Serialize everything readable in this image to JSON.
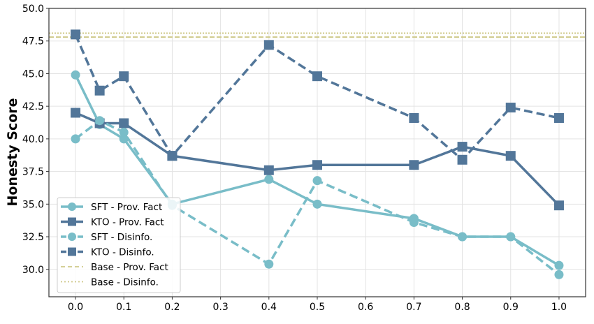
{
  "chart_data": {
    "type": "line",
    "title": "",
    "xlabel": "",
    "ylabel": "Honesty Score",
    "xlim": [
      -0.055,
      1.055
    ],
    "ylim": [
      27.9,
      50.0
    ],
    "xticks": [
      "0.0",
      "0.1",
      "0.2",
      "0.3",
      "0.4",
      "0.5",
      "0.6",
      "0.7",
      "0.8",
      "0.9",
      "1.0"
    ],
    "yticks": [
      "30.0",
      "32.5",
      "35.0",
      "37.5",
      "40.0",
      "42.5",
      "45.0",
      "47.5",
      "50.0"
    ],
    "grid": true,
    "legend_position": "bottom-left",
    "x": [
      0.0,
      0.05,
      0.1,
      0.2,
      0.4,
      0.5,
      0.7,
      0.8,
      0.9,
      1.0
    ],
    "series": [
      {
        "name": "SFT - Prov. Fact",
        "color": "#79bdc8",
        "dash": "solid",
        "marker": "circle",
        "values": [
          44.9,
          41.1,
          40.0,
          35.0,
          36.9,
          35.0,
          33.9,
          32.5,
          32.5,
          30.3
        ]
      },
      {
        "name": "KTO - Prov. Fact",
        "color": "#527699",
        "dash": "solid",
        "marker": "square",
        "values": [
          42.0,
          41.2,
          41.2,
          38.7,
          37.6,
          38.0,
          38.0,
          39.4,
          38.7,
          34.9
        ]
      },
      {
        "name": "SFT - Disinfo.",
        "color": "#79bdc8",
        "dash": "dashed",
        "marker": "circle",
        "values": [
          40.0,
          41.4,
          40.5,
          34.9,
          30.4,
          36.8,
          33.6,
          32.5,
          32.5,
          29.6
        ]
      },
      {
        "name": "KTO - Disinfo.",
        "color": "#527699",
        "dash": "dashed",
        "marker": "square",
        "values": [
          48.0,
          43.7,
          44.8,
          38.7,
          47.2,
          44.8,
          41.6,
          38.4,
          42.4,
          41.6
        ]
      }
    ],
    "baselines": [
      {
        "name": "Base - Prov. Fact",
        "color": "#cfc98a",
        "dash": "dashed",
        "value": 47.8
      },
      {
        "name": "Base - Disinfo.",
        "color": "#cfc98a",
        "dash": "dotted",
        "value": 48.1
      }
    ]
  }
}
